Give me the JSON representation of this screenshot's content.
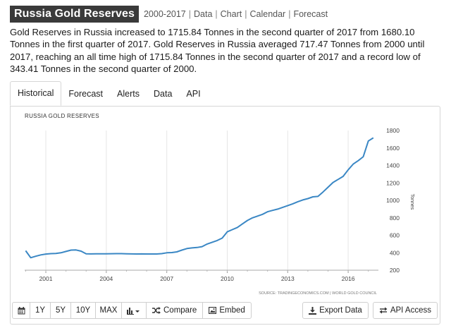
{
  "header": {
    "title": "Russia Gold Reserves",
    "period": "2000-2017",
    "links": [
      "Data",
      "Chart",
      "Calendar",
      "Forecast"
    ]
  },
  "summary": "Gold Reserves in Russia increased to 1715.84 Tonnes in the second quarter of 2017 from 1680.10 Tonnes in the first quarter of 2017. Gold Reserves in Russia averaged 717.47 Tonnes from 2000 until 2017, reaching an all time high of 1715.84 Tonnes in the second quarter of 2017 and a record low of 343.41 Tonnes in the second quarter of 2000.",
  "tabs": [
    {
      "label": "Historical",
      "active": true
    },
    {
      "label": "Forecast",
      "active": false
    },
    {
      "label": "Alerts",
      "active": false
    },
    {
      "label": "Data",
      "active": false
    },
    {
      "label": "API",
      "active": false
    }
  ],
  "toolbar": {
    "range_buttons": [
      "1Y",
      "5Y",
      "10Y",
      "MAX"
    ],
    "compare_label": "Compare",
    "embed_label": "Embed",
    "export_label": "Export Data",
    "api_label": "API Access"
  },
  "colors": {
    "line": "#3a87c4",
    "badge_bg": "#3a3a3a",
    "grid": "#e6e6e6"
  },
  "chart_data": {
    "type": "line",
    "title": "RUSSIA GOLD RESERVES",
    "ylabel": "Tonnes",
    "source": "SOURCE: TRADINGECONOMICS.COM | WORLD GOLD COUNCIL",
    "xlim": [
      1999.95,
      2017.5
    ],
    "ylim": [
      200,
      1800
    ],
    "x_ticks": [
      2001,
      2004,
      2007,
      2010,
      2013,
      2016
    ],
    "y_ticks": [
      200,
      400,
      600,
      800,
      1000,
      1200,
      1400,
      1600,
      1800
    ],
    "y_axis_side": "right",
    "grid": "vertical",
    "series": [
      {
        "points": [
          [
            2000.0,
            423
          ],
          [
            2000.25,
            343.41
          ],
          [
            2000.5,
            360
          ],
          [
            2000.75,
            375
          ],
          [
            2001.0,
            385
          ],
          [
            2001.25,
            390
          ],
          [
            2001.5,
            392
          ],
          [
            2001.75,
            400
          ],
          [
            2002.0,
            415
          ],
          [
            2002.25,
            430
          ],
          [
            2002.5,
            432
          ],
          [
            2002.75,
            418
          ],
          [
            2003.0,
            388
          ],
          [
            2003.25,
            387
          ],
          [
            2003.5,
            388
          ],
          [
            2003.75,
            388
          ],
          [
            2004.0,
            388
          ],
          [
            2004.25,
            389
          ],
          [
            2004.5,
            390
          ],
          [
            2004.75,
            390
          ],
          [
            2005.0,
            388
          ],
          [
            2005.25,
            387
          ],
          [
            2005.5,
            386
          ],
          [
            2005.75,
            387
          ],
          [
            2006.0,
            386
          ],
          [
            2006.25,
            386
          ],
          [
            2006.5,
            386
          ],
          [
            2006.75,
            390
          ],
          [
            2007.0,
            400
          ],
          [
            2007.25,
            402
          ],
          [
            2007.5,
            410
          ],
          [
            2007.75,
            430
          ],
          [
            2008.0,
            448
          ],
          [
            2008.25,
            455
          ],
          [
            2008.5,
            460
          ],
          [
            2008.75,
            470
          ],
          [
            2009.0,
            500
          ],
          [
            2009.25,
            520
          ],
          [
            2009.5,
            540
          ],
          [
            2009.75,
            568
          ],
          [
            2010.0,
            640
          ],
          [
            2010.25,
            665
          ],
          [
            2010.5,
            690
          ],
          [
            2010.75,
            730
          ],
          [
            2011.0,
            770
          ],
          [
            2011.25,
            800
          ],
          [
            2011.5,
            820
          ],
          [
            2011.75,
            840
          ],
          [
            2012.0,
            870
          ],
          [
            2012.25,
            885
          ],
          [
            2012.5,
            900
          ],
          [
            2012.75,
            920
          ],
          [
            2013.0,
            940
          ],
          [
            2013.25,
            960
          ],
          [
            2013.5,
            985
          ],
          [
            2013.75,
            1005
          ],
          [
            2014.0,
            1020
          ],
          [
            2014.25,
            1040
          ],
          [
            2014.5,
            1045
          ],
          [
            2014.75,
            1095
          ],
          [
            2015.0,
            1150
          ],
          [
            2015.25,
            1205
          ],
          [
            2015.5,
            1240
          ],
          [
            2015.75,
            1275
          ],
          [
            2016.0,
            1350
          ],
          [
            2016.25,
            1415
          ],
          [
            2016.5,
            1455
          ],
          [
            2016.75,
            1500
          ],
          [
            2017.0,
            1680.1
          ],
          [
            2017.25,
            1715.84
          ]
        ]
      }
    ]
  }
}
